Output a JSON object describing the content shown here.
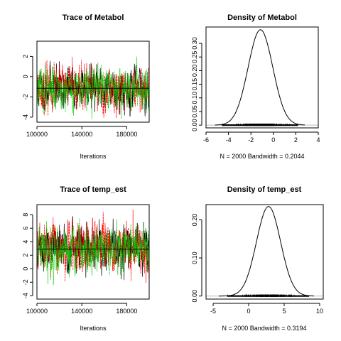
{
  "chart_data": [
    {
      "type": "line",
      "title": "Trace of Metabol",
      "xlabel": "Iterations",
      "ylabel": "",
      "xlim": [
        100000,
        200000
      ],
      "ylim": [
        -4.5,
        3.5
      ],
      "xticks": [
        100000,
        140000,
        180000
      ],
      "xtick_labels": [
        "100000",
        "140000",
        "180000"
      ],
      "yticks": [
        -4,
        -2,
        0,
        2
      ],
      "ytick_labels": [
        "-4",
        "-2",
        "0",
        "2"
      ],
      "x_range": [
        100000,
        200000
      ],
      "mean_line": -1.15,
      "series": [
        {
          "color": "#000000",
          "center": -1.15,
          "spread": 1.0,
          "seed": 11
        },
        {
          "color": "#ff0000",
          "center": -1.15,
          "spread": 1.0,
          "seed": 23
        },
        {
          "color": "#00cc00",
          "center": -1.15,
          "spread": 1.0,
          "seed": 37
        }
      ],
      "footer": ""
    },
    {
      "type": "line",
      "title": "Density of Metabol",
      "xlabel": "",
      "ylabel": "",
      "xlim": [
        -6,
        4
      ],
      "ylim": [
        -0.01,
        0.36
      ],
      "xticks": [
        -6,
        -4,
        -2,
        0,
        2,
        4
      ],
      "xtick_labels": [
        "-6",
        "-4",
        "-2",
        "0",
        "2",
        "4"
      ],
      "yticks": [
        0.0,
        0.05,
        0.1,
        0.15,
        0.2,
        0.25,
        0.3
      ],
      "ytick_labels": [
        "0.00",
        "0.05",
        "0.10",
        "0.15",
        "0.20",
        "0.25",
        "0.30"
      ],
      "density": {
        "mean": -1.15,
        "sd": 1.1,
        "peak": 0.35,
        "xmin": -5.2,
        "xmax": 2.8
      },
      "rug": {
        "xmin": -4.6,
        "xmax": 2.2
      },
      "footer": "N = 2000   Bandwidth = 0.2044"
    },
    {
      "type": "line",
      "title": "Trace of temp_est",
      "xlabel": "Iterations",
      "ylabel": "",
      "xlim": [
        100000,
        200000
      ],
      "ylim": [
        -4.5,
        9.5
      ],
      "xticks": [
        100000,
        140000,
        180000
      ],
      "xtick_labels": [
        "100000",
        "140000",
        "180000"
      ],
      "yticks": [
        -4,
        -2,
        0,
        2,
        4,
        6,
        8
      ],
      "ytick_labels": [
        "-4",
        "-2",
        "0",
        "2",
        "4",
        "6",
        "8"
      ],
      "x_range": [
        100000,
        200000
      ],
      "mean_line": 2.9,
      "series": [
        {
          "color": "#000000",
          "center": 2.9,
          "spread": 1.7,
          "seed": 51
        },
        {
          "color": "#ff0000",
          "center": 2.9,
          "spread": 1.7,
          "seed": 67
        },
        {
          "color": "#00cc00",
          "center": 2.9,
          "spread": 1.7,
          "seed": 79
        }
      ],
      "footer": ""
    },
    {
      "type": "line",
      "title": "Density of temp_est",
      "xlabel": "",
      "ylabel": "",
      "xlim": [
        -6,
        10.5
      ],
      "ylim": [
        -0.008,
        0.24
      ],
      "xticks": [
        -5,
        0,
        5,
        10
      ],
      "xtick_labels": [
        "-5",
        "0",
        "5",
        "10"
      ],
      "yticks": [
        0.0,
        0.1,
        0.2
      ],
      "ytick_labels": [
        "0.00",
        "0.10",
        "0.20"
      ],
      "density": {
        "mean": 2.8,
        "sd": 1.7,
        "peak": 0.235,
        "xmin": -4.2,
        "xmax": 9.2
      },
      "rug": {
        "xmin": -3.0,
        "xmax": 8.5
      },
      "footer": "N = 2000   Bandwidth = 0.3194"
    }
  ]
}
